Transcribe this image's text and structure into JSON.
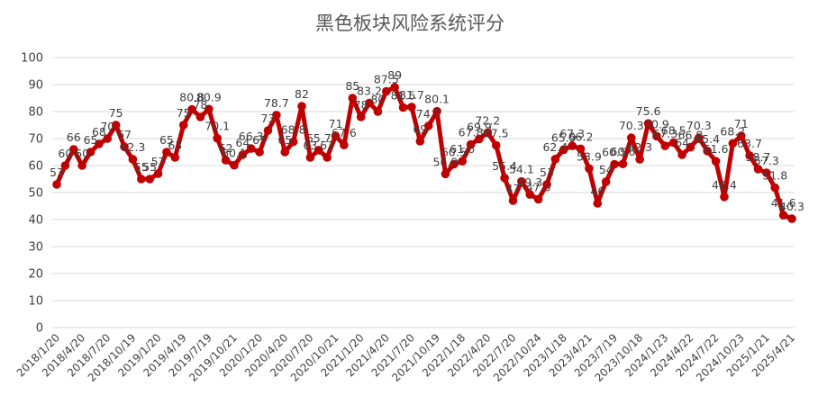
{
  "chart_data": {
    "type": "line",
    "title": "黑色板块风险系统评分",
    "xlabel": "",
    "ylabel": "",
    "ylim": [
      0,
      100
    ],
    "yticks": [
      "0",
      "10",
      "20",
      "30",
      "40",
      "50",
      "60",
      "70",
      "80",
      "90",
      "100"
    ],
    "grid": "horizontal",
    "legend": "none",
    "series_color": "#C00000",
    "xtick_labels": [
      "2018/1/20",
      "2018/4/20",
      "2018/7/20",
      "2018/10/19",
      "2019/1/20",
      "2019/4/19",
      "2019/7/19",
      "2019/10/21",
      "2020/1/20",
      "2020/4/20",
      "2020/7/20",
      "2020/10/21",
      "2021/1/20",
      "2021/4/20",
      "2021/7/20",
      "2021/10/19",
      "2022/1/18",
      "2022/4/20",
      "2022/7/20",
      "2022/10/24",
      "2023/1/18",
      "2023/4/21",
      "2023/7/19",
      "2023/10/18",
      "2024/1/23",
      "2024/4/22",
      "2024/7/22",
      "2024/10/23",
      "2025/1/21",
      "2025/4/21"
    ],
    "values": [
      53,
      60,
      66,
      60,
      65,
      68,
      70,
      75,
      67,
      62.3,
      55,
      55,
      57,
      65,
      63,
      75,
      80.8,
      78,
      80.9,
      70.1,
      62,
      60.1,
      64,
      66.3,
      65,
      73,
      78.7,
      65,
      68.8,
      82,
      63,
      65.7,
      63,
      71,
      67.6,
      85,
      78,
      83.2,
      80,
      87.5,
      89,
      81.5,
      81.7,
      69,
      74.7,
      80.1,
      56.9,
      60.5,
      61.6,
      67.8,
      69.9,
      72.2,
      67.5,
      55.4,
      47,
      54.1,
      49.3,
      47.5,
      53,
      62.4,
      65.9,
      67.3,
      66.2,
      58.9,
      46,
      54,
      60.5,
      60.6,
      70.3,
      62.3,
      75.6,
      70.9,
      67.3,
      68.5,
      64,
      66.8,
      70.3,
      65.4,
      61.6,
      48.4,
      68.2,
      71,
      63.7,
      58.7,
      57.3,
      51.8,
      41.6,
      40.3
    ],
    "data_labels": [
      "53",
      "60",
      "66",
      "60",
      "65",
      "68",
      "70",
      "75",
      "67",
      "62.3",
      "55",
      "55",
      "57",
      "65",
      "63",
      "75",
      "80.8",
      "78",
      "80.9",
      "70.1",
      "62",
      "60.1",
      "64",
      "66.3",
      "65",
      "73",
      "78.7",
      "65",
      "68.8",
      "82",
      "63",
      "65.7",
      "63",
      "71",
      "67.6",
      "85",
      "78",
      "83.2",
      "80",
      "87.5",
      "89",
      "81.5",
      "81.7",
      "69",
      "74.7",
      "80.1",
      "56.9",
      "60.5",
      "61.6",
      "67.8",
      "69.9",
      "72.2",
      "67.5",
      "55.4",
      "47",
      "54.1",
      "49.3",
      "47.5",
      "53",
      "62.4",
      "65.9",
      "67.3",
      "66.2",
      "58.9",
      "46",
      "54",
      "60.5",
      "60.6",
      "70.3",
      "62.3",
      "75.6",
      "70.9",
      "67.3",
      "68.5",
      "64",
      "66.8",
      "70.3",
      "65.4",
      "61.6",
      "48.4",
      "68.2",
      "71",
      "63.7",
      "58.7",
      "57.3",
      "51.8",
      "41.6",
      "40.3"
    ]
  }
}
